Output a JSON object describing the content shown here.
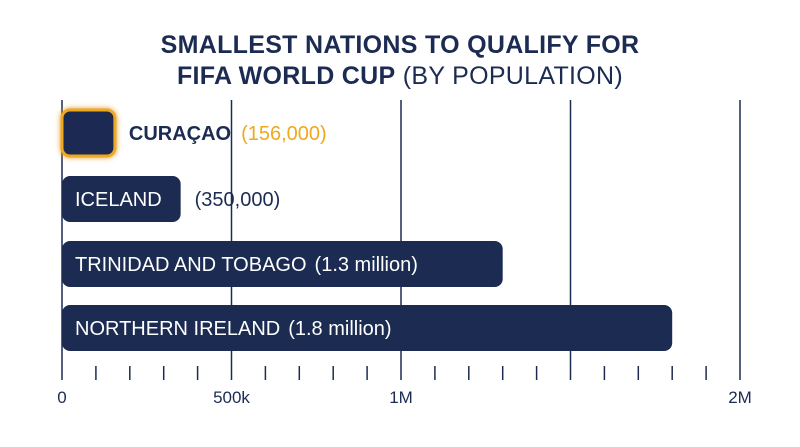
{
  "title": {
    "line1": "SMALLEST NATIONS TO QUALIFY FOR",
    "line2_bold": "FIFA WORLD CUP",
    "line2_light": "(BY POPULATION)"
  },
  "colors": {
    "bar": "#1b2b52",
    "highlight": "#f0a81c",
    "grid": "#1b2b52"
  },
  "chart_data": {
    "type": "bar",
    "orientation": "horizontal",
    "title": "SMALLEST NATIONS TO QUALIFY FOR FIFA WORLD CUP (BY POPULATION)",
    "categories": [
      "CURAÇAO",
      "ICELAND",
      "TRINIDAD AND TOBAGO",
      "NORTHERN IRELAND"
    ],
    "values": [
      156000,
      350000,
      1300000,
      1800000
    ],
    "value_labels": [
      "(156,000)",
      "(350,000)",
      "(1.3 million)",
      "(1.8 million)"
    ],
    "highlighted": "CURAÇAO",
    "xlim": [
      0,
      2000000
    ],
    "major_ticks": [
      0,
      500000,
      1000000,
      1500000,
      2000000
    ],
    "tick_labels": [
      {
        "value": 0,
        "label": "0"
      },
      {
        "value": 500000,
        "label": "500k"
      },
      {
        "value": 1000000,
        "label": "1M"
      },
      {
        "value": 2000000,
        "label": "2M"
      }
    ],
    "minor_tick_step": 100000,
    "grid": true
  }
}
